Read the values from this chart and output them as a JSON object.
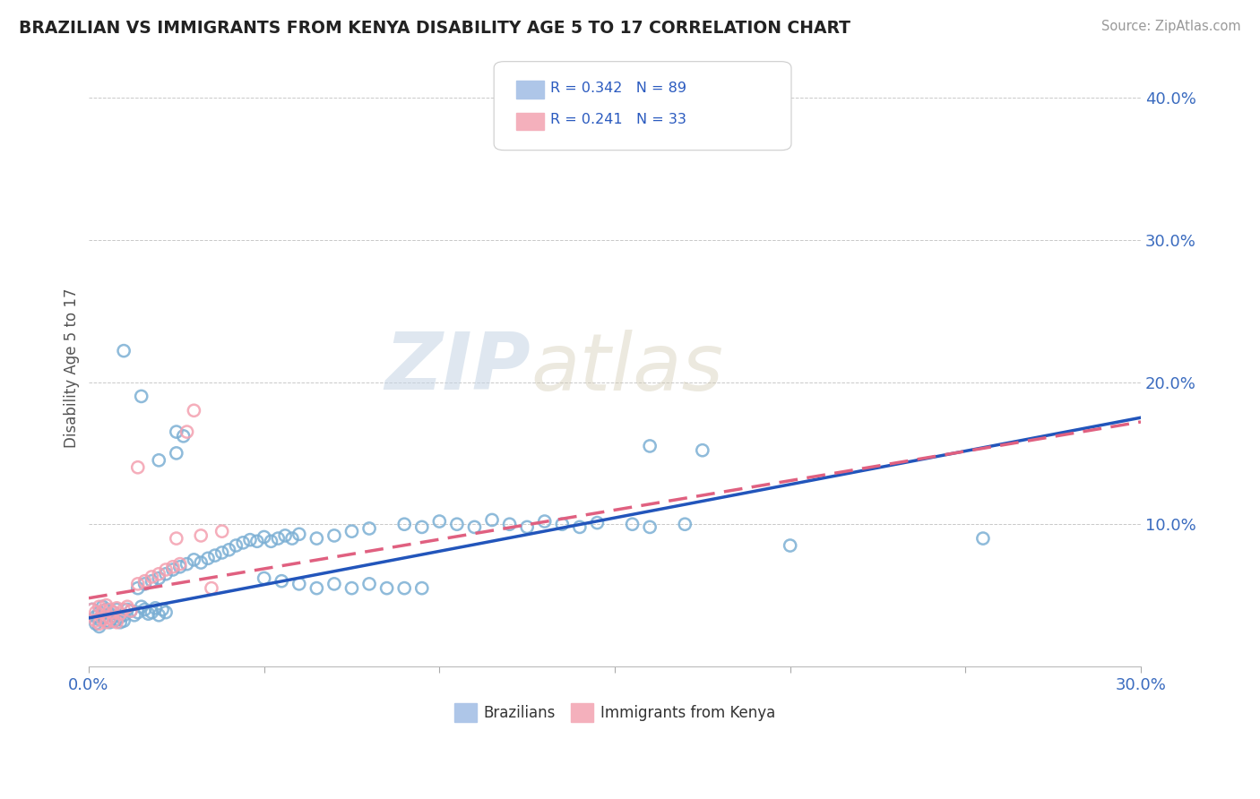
{
  "title": "BRAZILIAN VS IMMIGRANTS FROM KENYA DISABILITY AGE 5 TO 17 CORRELATION CHART",
  "source": "Source: ZipAtlas.com",
  "ylabel": "Disability Age 5 to 17",
  "xlim": [
    0.0,
    0.3
  ],
  "ylim": [
    0.0,
    0.42
  ],
  "xticks": [
    0.0,
    0.05,
    0.1,
    0.15,
    0.2,
    0.25,
    0.3
  ],
  "yticks": [
    0.0,
    0.1,
    0.2,
    0.3,
    0.4
  ],
  "brazil_color": "#7bafd4",
  "kenya_color": "#f4a0b0",
  "brazil_line_color": "#2255bb",
  "kenya_line_color": "#e06080",
  "watermark_zip": "ZIP",
  "watermark_atlas": "atlas",
  "brazil_line": [
    [
      0.0,
      0.034
    ],
    [
      0.3,
      0.175
    ]
  ],
  "kenya_line": [
    [
      0.0,
      0.048
    ],
    [
      0.3,
      0.172
    ]
  ],
  "brazil_scatter": [
    [
      0.001,
      0.04
    ],
    [
      0.002,
      0.035
    ],
    [
      0.003,
      0.038
    ],
    [
      0.004,
      0.042
    ],
    [
      0.005,
      0.04
    ],
    [
      0.006,
      0.037
    ],
    [
      0.007,
      0.038
    ],
    [
      0.008,
      0.04
    ],
    [
      0.009,
      0.035
    ],
    [
      0.01,
      0.036
    ],
    [
      0.011,
      0.04
    ],
    [
      0.012,
      0.039
    ],
    [
      0.013,
      0.036
    ],
    [
      0.014,
      0.038
    ],
    [
      0.015,
      0.042
    ],
    [
      0.016,
      0.04
    ],
    [
      0.017,
      0.037
    ],
    [
      0.018,
      0.038
    ],
    [
      0.019,
      0.041
    ],
    [
      0.02,
      0.036
    ],
    [
      0.021,
      0.04
    ],
    [
      0.022,
      0.038
    ],
    [
      0.003,
      0.033
    ],
    [
      0.004,
      0.034
    ],
    [
      0.005,
      0.032
    ],
    [
      0.006,
      0.031
    ],
    [
      0.007,
      0.035
    ],
    [
      0.008,
      0.033
    ],
    [
      0.009,
      0.031
    ],
    [
      0.01,
      0.032
    ],
    [
      0.002,
      0.03
    ],
    [
      0.003,
      0.028
    ],
    [
      0.014,
      0.055
    ],
    [
      0.016,
      0.058
    ],
    [
      0.018,
      0.06
    ],
    [
      0.02,
      0.062
    ],
    [
      0.022,
      0.065
    ],
    [
      0.024,
      0.068
    ],
    [
      0.026,
      0.07
    ],
    [
      0.028,
      0.072
    ],
    [
      0.03,
      0.075
    ],
    [
      0.032,
      0.073
    ],
    [
      0.034,
      0.076
    ],
    [
      0.036,
      0.078
    ],
    [
      0.038,
      0.08
    ],
    [
      0.04,
      0.082
    ],
    [
      0.042,
      0.085
    ],
    [
      0.044,
      0.087
    ],
    [
      0.046,
      0.089
    ],
    [
      0.048,
      0.088
    ],
    [
      0.05,
      0.091
    ],
    [
      0.052,
      0.088
    ],
    [
      0.054,
      0.09
    ],
    [
      0.056,
      0.092
    ],
    [
      0.058,
      0.09
    ],
    [
      0.06,
      0.093
    ],
    [
      0.065,
      0.09
    ],
    [
      0.07,
      0.092
    ],
    [
      0.075,
      0.095
    ],
    [
      0.08,
      0.097
    ],
    [
      0.09,
      0.1
    ],
    [
      0.095,
      0.098
    ],
    [
      0.1,
      0.102
    ],
    [
      0.105,
      0.1
    ],
    [
      0.11,
      0.098
    ],
    [
      0.115,
      0.103
    ],
    [
      0.12,
      0.1
    ],
    [
      0.125,
      0.098
    ],
    [
      0.13,
      0.102
    ],
    [
      0.135,
      0.1
    ],
    [
      0.14,
      0.098
    ],
    [
      0.145,
      0.101
    ],
    [
      0.155,
      0.1
    ],
    [
      0.16,
      0.098
    ],
    [
      0.17,
      0.1
    ],
    [
      0.05,
      0.062
    ],
    [
      0.055,
      0.06
    ],
    [
      0.06,
      0.058
    ],
    [
      0.065,
      0.055
    ],
    [
      0.07,
      0.058
    ],
    [
      0.075,
      0.055
    ],
    [
      0.08,
      0.058
    ],
    [
      0.085,
      0.055
    ],
    [
      0.09,
      0.055
    ],
    [
      0.095,
      0.055
    ],
    [
      0.01,
      0.222
    ],
    [
      0.015,
      0.19
    ],
    [
      0.025,
      0.165
    ],
    [
      0.027,
      0.162
    ],
    [
      0.02,
      0.145
    ],
    [
      0.025,
      0.15
    ],
    [
      0.2,
      0.085
    ],
    [
      0.255,
      0.09
    ],
    [
      0.16,
      0.155
    ],
    [
      0.175,
      0.152
    ]
  ],
  "kenya_scatter": [
    [
      0.001,
      0.04
    ],
    [
      0.002,
      0.038
    ],
    [
      0.003,
      0.042
    ],
    [
      0.004,
      0.039
    ],
    [
      0.005,
      0.043
    ],
    [
      0.006,
      0.04
    ],
    [
      0.007,
      0.038
    ],
    [
      0.008,
      0.041
    ],
    [
      0.009,
      0.037
    ],
    [
      0.01,
      0.04
    ],
    [
      0.011,
      0.042
    ],
    [
      0.012,
      0.039
    ],
    [
      0.002,
      0.032
    ],
    [
      0.003,
      0.03
    ],
    [
      0.004,
      0.033
    ],
    [
      0.005,
      0.031
    ],
    [
      0.006,
      0.034
    ],
    [
      0.007,
      0.032
    ],
    [
      0.008,
      0.031
    ],
    [
      0.014,
      0.058
    ],
    [
      0.016,
      0.06
    ],
    [
      0.018,
      0.063
    ],
    [
      0.02,
      0.065
    ],
    [
      0.022,
      0.068
    ],
    [
      0.024,
      0.07
    ],
    [
      0.026,
      0.072
    ],
    [
      0.028,
      0.165
    ],
    [
      0.03,
      0.18
    ],
    [
      0.014,
      0.14
    ],
    [
      0.025,
      0.09
    ],
    [
      0.032,
      0.092
    ],
    [
      0.038,
      0.095
    ],
    [
      0.035,
      0.055
    ]
  ]
}
